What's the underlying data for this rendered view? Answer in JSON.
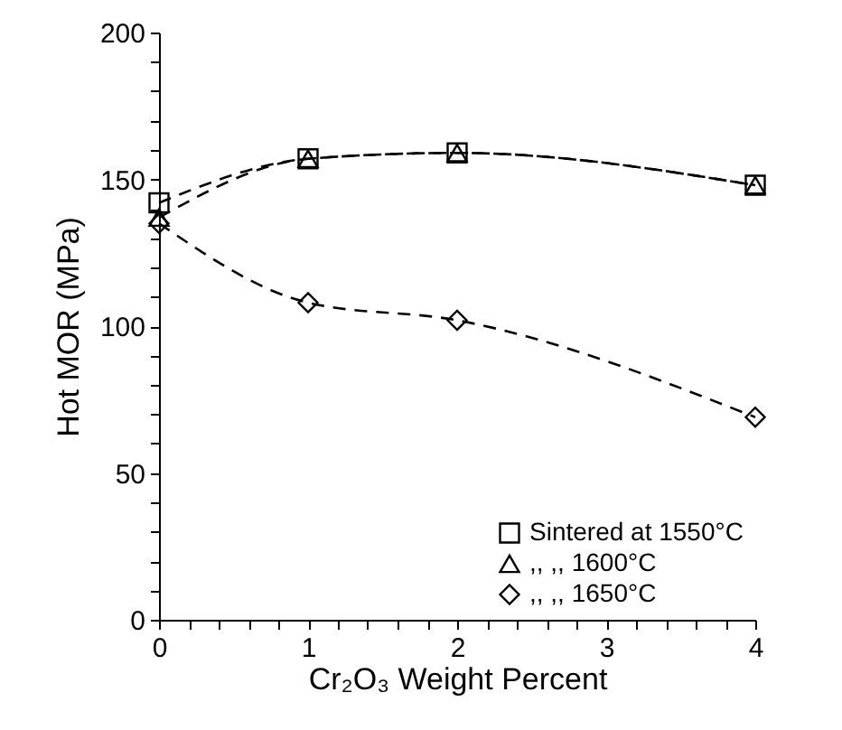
{
  "chart_data": {
    "type": "line",
    "xlabel": "Cr₂O₃ Weight Percent",
    "ylabel": "Hot MOR (MPa)",
    "x": [
      0,
      1,
      2,
      4
    ],
    "series": [
      {
        "name": "Sintered at 1550°C",
        "color": "#000000",
        "marker": "square",
        "values": [
          142,
          157,
          159,
          148
        ]
      },
      {
        "name": ",,          ,,  1600°C",
        "color": "#000000",
        "marker": "triangle",
        "values": [
          137,
          157,
          159,
          148
        ]
      },
      {
        "name": ",,          ,,  1650°C",
        "color": "#000000",
        "marker": "diamond",
        "values": [
          135,
          108,
          102,
          69
        ]
      }
    ],
    "xlim": [
      0,
      4
    ],
    "ylim": [
      0,
      200
    ],
    "xticks": [
      0,
      {
        "value": 0.2,
        "label": null
      },
      {
        "value": 0.4,
        "label": null
      },
      {
        "value": 0.6,
        "label": null
      },
      {
        "value": 0.8,
        "label": null
      },
      1,
      {
        "value": 1.2,
        "label": null
      },
      {
        "value": 1.4,
        "label": null
      },
      {
        "value": 1.6,
        "label": null
      },
      {
        "value": 1.8,
        "label": null
      },
      2,
      {
        "value": 2.2,
        "label": null
      },
      {
        "value": 2.4,
        "label": null
      },
      {
        "value": 2.6,
        "label": null
      },
      {
        "value": 2.8,
        "label": null
      },
      3,
      {
        "value": 3.2,
        "label": null
      },
      {
        "value": 3.4,
        "label": null
      },
      {
        "value": 3.6,
        "label": null
      },
      {
        "value": 3.8,
        "label": null
      },
      4
    ],
    "yticks": [
      0,
      {
        "value": 10,
        "label": null
      },
      {
        "value": 20,
        "label": null
      },
      {
        "value": 30,
        "label": null
      },
      {
        "value": 40,
        "label": null
      },
      50,
      {
        "value": 60,
        "label": null
      },
      {
        "value": 70,
        "label": null
      },
      {
        "value": 80,
        "label": null
      },
      {
        "value": 90,
        "label": null
      },
      100,
      {
        "value": 110,
        "label": null
      },
      {
        "value": 120,
        "label": null
      },
      {
        "value": 130,
        "label": null
      },
      {
        "value": 140,
        "label": null
      },
      150,
      {
        "value": 160,
        "label": null
      },
      {
        "value": 170,
        "label": null
      },
      {
        "value": 180,
        "label": null
      },
      {
        "value": 190,
        "label": null
      },
      200
    ],
    "grid": false,
    "legend": "bottom right",
    "line_style": "dashed"
  }
}
